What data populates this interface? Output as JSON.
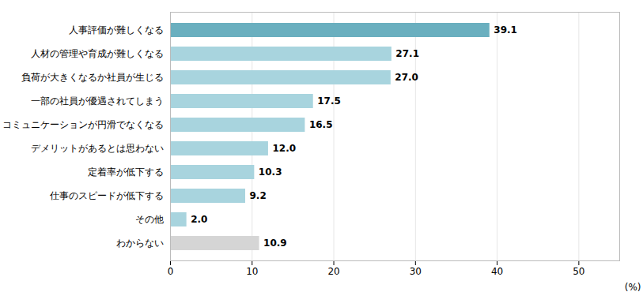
{
  "chart_data": {
    "type": "bar",
    "orientation": "horizontal",
    "categories": [
      "人事評価が難しくなる",
      "人材の管理や育成が難しくなる",
      "負荷が大きくなるか社員が生じる",
      "一部の社員が優遇されてしまう",
      "コミュニケーションが円滑でなくなる",
      "デメリットがあるとは思わない",
      "定着率が低下する",
      "仕事のスピードが低下する",
      "その他",
      "わからない"
    ],
    "values": [
      39.1,
      27.1,
      27.0,
      17.5,
      16.5,
      12.0,
      10.3,
      9.2,
      2.0,
      10.9
    ],
    "value_labels": [
      "39.1",
      "27.1",
      "27.0",
      "17.5",
      "16.5",
      "12.0",
      "10.3",
      "9.2",
      "2.0",
      "10.9"
    ],
    "colors": [
      "#6aafbf",
      "#a8d4de",
      "#a8d4de",
      "#a8d4de",
      "#a8d4de",
      "#a8d4de",
      "#a8d4de",
      "#a8d4de",
      "#a8d4de",
      "#d5d5d5"
    ],
    "xlabel": "(%)",
    "xlim": [
      0,
      55
    ],
    "xticks": [
      0,
      10,
      20,
      30,
      40,
      50
    ],
    "grid": true,
    "data_labels": true
  }
}
